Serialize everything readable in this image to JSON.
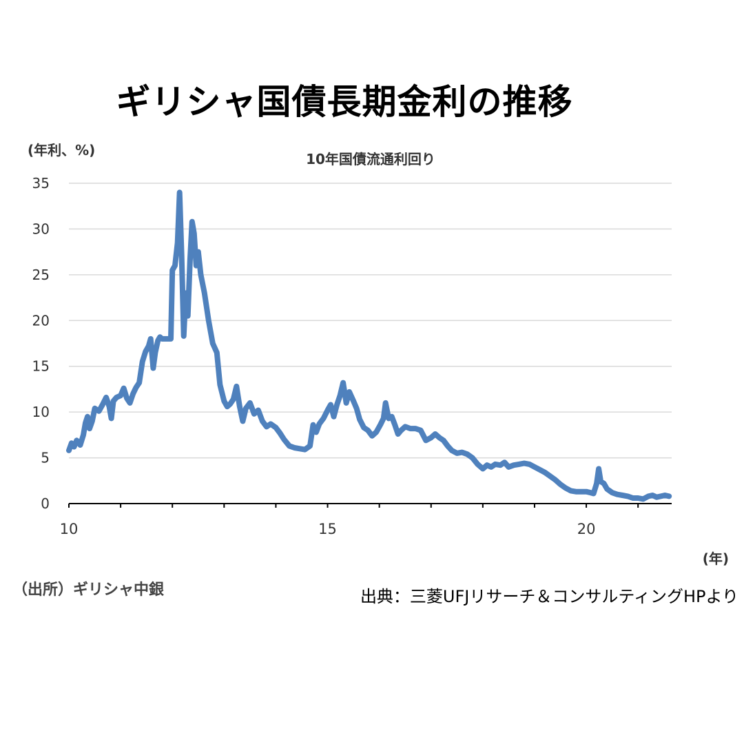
{
  "headline": "ギリシャ国債長期金利の推移",
  "source_left": "（出所）ギリシャ中銀",
  "source_right": "出典：三菱UFJリサーチ＆コンサルティングHPより",
  "colors": {
    "line": "#4f81bd",
    "grid": "#d9d9d9",
    "axis": "#000000"
  },
  "chart_data": {
    "type": "line",
    "title": "10年国債流通利回り",
    "ylabel": "(年利、%)",
    "xlabel": "(年)",
    "ylim": [
      0,
      35
    ],
    "yticks": [
      0,
      5,
      10,
      15,
      20,
      25,
      30,
      35
    ],
    "xlim": [
      2010,
      2021.65
    ],
    "xticks": [
      {
        "value": 2010,
        "label": "10"
      },
      {
        "value": 2015,
        "label": "15"
      },
      {
        "value": 2020,
        "label": "20"
      }
    ],
    "grid": true,
    "series": [
      {
        "values": [
          [
            2010.0,
            5.8
          ],
          [
            2010.05,
            6.6
          ],
          [
            2010.1,
            6.2
          ],
          [
            2010.15,
            6.9
          ],
          [
            2010.22,
            6.4
          ],
          [
            2010.28,
            7.5
          ],
          [
            2010.32,
            8.8
          ],
          [
            2010.36,
            9.5
          ],
          [
            2010.4,
            8.2
          ],
          [
            2010.45,
            9.0
          ],
          [
            2010.5,
            10.4
          ],
          [
            2010.58,
            10.1
          ],
          [
            2010.65,
            10.8
          ],
          [
            2010.72,
            11.6
          ],
          [
            2010.78,
            10.6
          ],
          [
            2010.82,
            9.3
          ],
          [
            2010.86,
            11.2
          ],
          [
            2010.92,
            11.6
          ],
          [
            2011.0,
            11.8
          ],
          [
            2011.06,
            12.6
          ],
          [
            2011.12,
            11.5
          ],
          [
            2011.18,
            11.0
          ],
          [
            2011.24,
            12.0
          ],
          [
            2011.3,
            12.7
          ],
          [
            2011.36,
            13.2
          ],
          [
            2011.42,
            15.5
          ],
          [
            2011.48,
            16.6
          ],
          [
            2011.54,
            17.2
          ],
          [
            2011.58,
            18.0
          ],
          [
            2011.63,
            14.8
          ],
          [
            2011.67,
            16.5
          ],
          [
            2011.72,
            17.8
          ],
          [
            2011.76,
            18.2
          ],
          [
            2011.8,
            18.0
          ],
          [
            2011.9,
            18.0
          ],
          [
            2011.97,
            18.0
          ],
          [
            2012.0,
            25.5
          ],
          [
            2012.05,
            26.0
          ],
          [
            2012.1,
            28.5
          ],
          [
            2012.14,
            34.0
          ],
          [
            2012.18,
            27.0
          ],
          [
            2012.22,
            18.3
          ],
          [
            2012.26,
            23.0
          ],
          [
            2012.3,
            20.5
          ],
          [
            2012.34,
            26.5
          ],
          [
            2012.38,
            30.8
          ],
          [
            2012.42,
            29.5
          ],
          [
            2012.46,
            26.0
          ],
          [
            2012.5,
            27.5
          ],
          [
            2012.55,
            25.0
          ],
          [
            2012.62,
            23.0
          ],
          [
            2012.7,
            20.0
          ],
          [
            2012.78,
            17.5
          ],
          [
            2012.86,
            16.5
          ],
          [
            2012.92,
            13.0
          ],
          [
            2013.0,
            11.2
          ],
          [
            2013.06,
            10.6
          ],
          [
            2013.12,
            10.9
          ],
          [
            2013.18,
            11.4
          ],
          [
            2013.24,
            12.8
          ],
          [
            2013.3,
            10.6
          ],
          [
            2013.36,
            9.0
          ],
          [
            2013.42,
            10.4
          ],
          [
            2013.5,
            11.0
          ],
          [
            2013.58,
            9.8
          ],
          [
            2013.66,
            10.2
          ],
          [
            2013.74,
            9.0
          ],
          [
            2013.82,
            8.4
          ],
          [
            2013.9,
            8.7
          ],
          [
            2014.0,
            8.3
          ],
          [
            2014.08,
            7.7
          ],
          [
            2014.16,
            7.0
          ],
          [
            2014.26,
            6.3
          ],
          [
            2014.36,
            6.1
          ],
          [
            2014.46,
            6.0
          ],
          [
            2014.56,
            5.9
          ],
          [
            2014.66,
            6.3
          ],
          [
            2014.72,
            8.6
          ],
          [
            2014.78,
            7.8
          ],
          [
            2014.84,
            8.7
          ],
          [
            2014.92,
            9.3
          ],
          [
            2015.0,
            10.2
          ],
          [
            2015.06,
            10.8
          ],
          [
            2015.12,
            9.5
          ],
          [
            2015.18,
            10.8
          ],
          [
            2015.24,
            11.8
          ],
          [
            2015.3,
            13.2
          ],
          [
            2015.36,
            11.0
          ],
          [
            2015.42,
            12.2
          ],
          [
            2015.5,
            11.2
          ],
          [
            2015.56,
            10.4
          ],
          [
            2015.62,
            9.2
          ],
          [
            2015.7,
            8.3
          ],
          [
            2015.78,
            8.0
          ],
          [
            2015.86,
            7.4
          ],
          [
            2015.94,
            7.8
          ],
          [
            2016.02,
            8.6
          ],
          [
            2016.08,
            9.3
          ],
          [
            2016.12,
            11.0
          ],
          [
            2016.18,
            9.3
          ],
          [
            2016.24,
            9.5
          ],
          [
            2016.3,
            8.6
          ],
          [
            2016.36,
            7.6
          ],
          [
            2016.42,
            8.0
          ],
          [
            2016.5,
            8.4
          ],
          [
            2016.6,
            8.2
          ],
          [
            2016.7,
            8.2
          ],
          [
            2016.8,
            8.0
          ],
          [
            2016.9,
            6.9
          ],
          [
            2017.0,
            7.2
          ],
          [
            2017.08,
            7.6
          ],
          [
            2017.16,
            7.2
          ],
          [
            2017.24,
            6.9
          ],
          [
            2017.32,
            6.3
          ],
          [
            2017.4,
            5.8
          ],
          [
            2017.5,
            5.5
          ],
          [
            2017.6,
            5.6
          ],
          [
            2017.7,
            5.4
          ],
          [
            2017.8,
            5.0
          ],
          [
            2017.9,
            4.3
          ],
          [
            2018.0,
            3.8
          ],
          [
            2018.08,
            4.2
          ],
          [
            2018.16,
            4.0
          ],
          [
            2018.24,
            4.3
          ],
          [
            2018.34,
            4.2
          ],
          [
            2018.42,
            4.5
          ],
          [
            2018.5,
            4.0
          ],
          [
            2018.6,
            4.2
          ],
          [
            2018.7,
            4.3
          ],
          [
            2018.8,
            4.4
          ],
          [
            2018.9,
            4.3
          ],
          [
            2019.0,
            4.0
          ],
          [
            2019.1,
            3.7
          ],
          [
            2019.2,
            3.4
          ],
          [
            2019.3,
            3.0
          ],
          [
            2019.4,
            2.6
          ],
          [
            2019.5,
            2.1
          ],
          [
            2019.6,
            1.7
          ],
          [
            2019.7,
            1.4
          ],
          [
            2019.8,
            1.3
          ],
          [
            2019.9,
            1.3
          ],
          [
            2020.0,
            1.3
          ],
          [
            2020.08,
            1.2
          ],
          [
            2020.14,
            1.1
          ],
          [
            2020.2,
            2.2
          ],
          [
            2020.24,
            3.8
          ],
          [
            2020.28,
            2.4
          ],
          [
            2020.34,
            2.2
          ],
          [
            2020.4,
            1.6
          ],
          [
            2020.5,
            1.2
          ],
          [
            2020.6,
            1.0
          ],
          [
            2020.7,
            0.9
          ],
          [
            2020.8,
            0.8
          ],
          [
            2020.9,
            0.6
          ],
          [
            2021.0,
            0.6
          ],
          [
            2021.1,
            0.5
          ],
          [
            2021.2,
            0.8
          ],
          [
            2021.28,
            0.9
          ],
          [
            2021.36,
            0.7
          ],
          [
            2021.44,
            0.8
          ],
          [
            2021.52,
            0.9
          ],
          [
            2021.6,
            0.8
          ]
        ]
      }
    ]
  }
}
